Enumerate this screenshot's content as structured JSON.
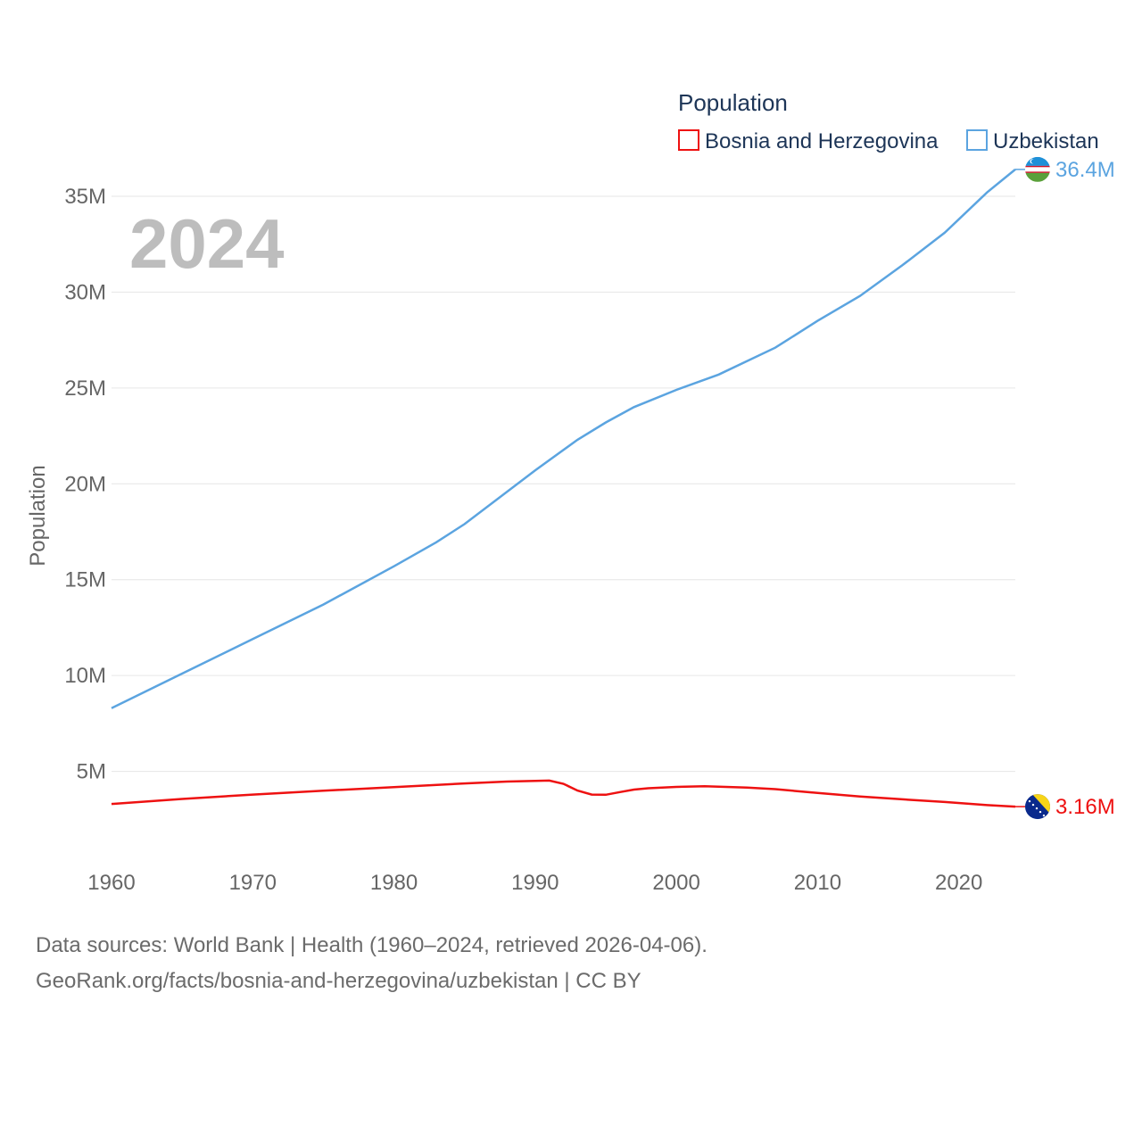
{
  "chart_data": {
    "type": "line",
    "year_label": "2024",
    "legend_title": "Population",
    "ylabel": "Population",
    "xlim": [
      1960,
      2024
    ],
    "ylim": [
      0,
      37000000
    ],
    "x_ticks": [
      1960,
      1970,
      1980,
      1990,
      2000,
      2010,
      2020
    ],
    "y_ticks": [
      {
        "value": 5000000,
        "label": "5M"
      },
      {
        "value": 10000000,
        "label": "10M"
      },
      {
        "value": 15000000,
        "label": "15M"
      },
      {
        "value": 20000000,
        "label": "20M"
      },
      {
        "value": 25000000,
        "label": "25M"
      },
      {
        "value": 30000000,
        "label": "30M"
      },
      {
        "value": 35000000,
        "label": "35M"
      }
    ],
    "series": [
      {
        "name": "Bosnia and Herzegovina",
        "color": "#ee1111",
        "end_label": "3.16M",
        "x": [
          1960,
          1965,
          1970,
          1975,
          1980,
          1985,
          1988,
          1991,
          1992,
          1993,
          1994,
          1995,
          1996,
          1997,
          1998,
          2000,
          2002,
          2005,
          2007,
          2010,
          2013,
          2016,
          2019,
          2022,
          2024
        ],
        "values": [
          3300000,
          3560000,
          3790000,
          3990000,
          4180000,
          4370000,
          4470000,
          4520000,
          4350000,
          4000000,
          3790000,
          3780000,
          3920000,
          4050000,
          4120000,
          4190000,
          4220000,
          4150000,
          4070000,
          3870000,
          3690000,
          3540000,
          3400000,
          3240000,
          3160000
        ]
      },
      {
        "name": "Uzbekistan",
        "color": "#5ba4e0",
        "end_label": "36.4M",
        "x": [
          1960,
          1965,
          1970,
          1975,
          1980,
          1983,
          1985,
          1990,
          1993,
          1995,
          1997,
          2000,
          2003,
          2007,
          2010,
          2013,
          2016,
          2019,
          2022,
          2024
        ],
        "values": [
          8300000,
          10100000,
          11900000,
          13700000,
          15700000,
          16950000,
          17900000,
          20700000,
          22300000,
          23200000,
          24000000,
          24900000,
          25700000,
          27100000,
          28500000,
          29800000,
          31400000,
          33100000,
          35200000,
          36400000
        ]
      }
    ]
  },
  "source": {
    "line1": "Data sources: World Bank | Health (1960–2024, retrieved 2026-04-06).",
    "line2": "GeoRank.org/facts/bosnia-and-herzegovina/uzbekistan | CC BY"
  }
}
